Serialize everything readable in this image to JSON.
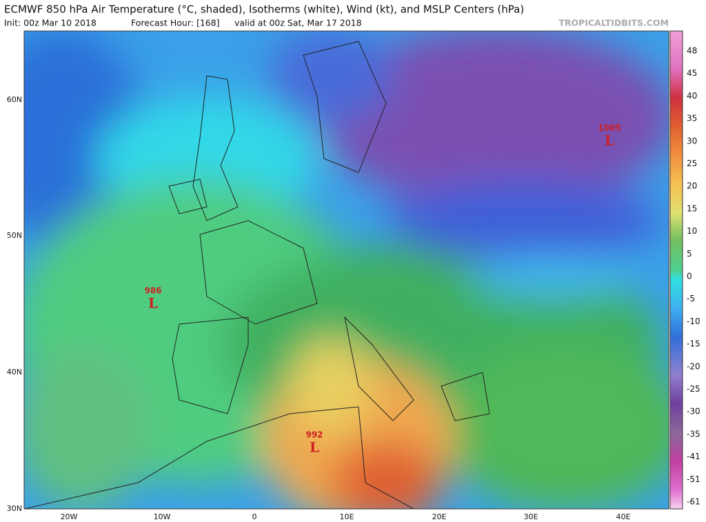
{
  "header": {
    "title": "ECMWF 850 hPa Air Temperature (°C, shaded), Isotherms (white), Wind (kt), and MSLP Centers (hPa)",
    "init": "Init: 00z Mar 10 2018",
    "forecast": "Forecast Hour: [168]",
    "valid": "valid at 00z Sat, Mar 17 2018",
    "site": "TROPICALTIDBITS.COM"
  },
  "map": {
    "lat_labels": [
      "60N",
      "50N",
      "40N",
      "30N"
    ],
    "lon_labels": [
      "20W",
      "10W",
      "0",
      "10E",
      "20E",
      "30E",
      "40E"
    ],
    "centers": [
      {
        "value": "1005",
        "symbol": "L"
      },
      {
        "value": "986",
        "symbol": "L"
      },
      {
        "value": "992",
        "symbol": "L"
      }
    ]
  },
  "colorbar": {
    "labels": [
      48,
      45,
      40,
      35,
      30,
      25,
      20,
      15,
      10,
      5,
      0,
      -5,
      -10,
      -15,
      -20,
      -25,
      -30,
      -35,
      -41,
      -51,
      -61
    ]
  }
}
